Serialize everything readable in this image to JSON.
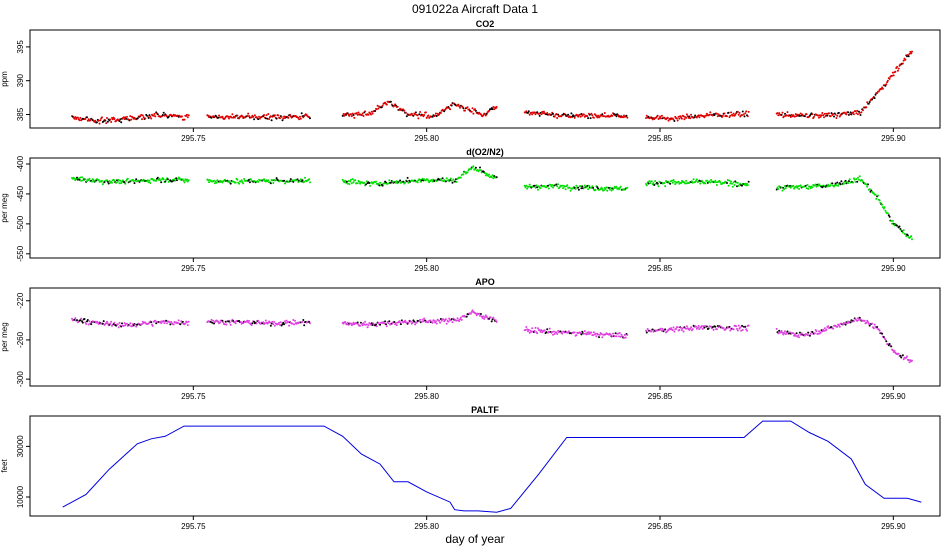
{
  "page_title": "091022a   Aircraft Data 1",
  "xlabel": "day of year",
  "chart_data": [
    {
      "type": "scatter",
      "title": "CO2",
      "ylabel": "ppm",
      "color": "#e00000",
      "xlim": [
        295.715,
        295.91
      ],
      "ylim": [
        383.0,
        397.5
      ],
      "xticks": [
        295.75,
        295.8,
        295.85,
        295.9
      ],
      "xtick_labels": [
        "295.75",
        "295.80",
        "295.85",
        "295.90"
      ],
      "yticks": [
        385,
        390,
        395
      ],
      "ytick_labels": [
        "385",
        "390",
        "395"
      ],
      "series": [
        {
          "x": [
            295.724,
            295.73,
            295.736,
            295.742,
            295.749
          ],
          "y": [
            384.6,
            384.0,
            384.4,
            384.9,
            384.6
          ]
        },
        {
          "x": [
            295.753,
            295.76,
            295.767,
            295.775
          ],
          "y": [
            384.7,
            384.6,
            384.6,
            384.7
          ]
        },
        {
          "x": [
            295.782,
            295.788,
            295.792,
            295.796,
            295.802,
            295.806,
            295.812,
            295.815
          ],
          "y": [
            384.9,
            385.2,
            386.9,
            385.0,
            384.8,
            386.6,
            384.9,
            386.1
          ]
        },
        {
          "x": [
            295.821,
            295.828,
            295.836,
            295.843
          ],
          "y": [
            385.4,
            384.9,
            384.8,
            384.8
          ]
        },
        {
          "x": [
            295.847,
            295.853,
            295.86,
            295.869
          ],
          "y": [
            384.6,
            384.4,
            384.9,
            385.1
          ]
        },
        {
          "x": [
            295.875,
            295.881,
            295.887,
            295.893,
            295.897,
            295.9,
            295.904
          ],
          "y": [
            385.0,
            384.8,
            384.9,
            385.3,
            388.5,
            391.0,
            394.5
          ]
        }
      ]
    },
    {
      "type": "scatter",
      "title": "d(O2/N2)",
      "ylabel": "per meg",
      "color": "#00e000",
      "xlim": [
        295.715,
        295.91
      ],
      "ylim": [
        -557,
        -390
      ],
      "xticks": [
        295.75,
        295.8,
        295.85,
        295.9
      ],
      "xtick_labels": [
        "295.75",
        "295.80",
        "295.85",
        "295.90"
      ],
      "yticks": [
        -400,
        -450,
        -500,
        -550
      ],
      "ytick_labels": [
        "-400",
        "-450",
        "-500",
        "-550"
      ],
      "series": [
        {
          "x": [
            295.724,
            295.73,
            295.736,
            295.742,
            295.749
          ],
          "y": [
            -425,
            -428,
            -430,
            -426,
            -427
          ]
        },
        {
          "x": [
            295.753,
            295.76,
            295.767,
            295.775
          ],
          "y": [
            -428,
            -429,
            -428,
            -428
          ]
        },
        {
          "x": [
            295.782,
            295.788,
            295.794,
            295.8,
            295.806,
            295.81,
            295.815
          ],
          "y": [
            -428,
            -433,
            -430,
            -426,
            -428,
            -405,
            -425
          ]
        },
        {
          "x": [
            295.821,
            295.828,
            295.836,
            295.843
          ],
          "y": [
            -438,
            -437,
            -440,
            -441
          ]
        },
        {
          "x": [
            295.847,
            295.853,
            295.86,
            295.869
          ],
          "y": [
            -432,
            -431,
            -430,
            -434
          ]
        },
        {
          "x": [
            295.875,
            295.881,
            295.887,
            295.893,
            295.897,
            295.9,
            295.904
          ],
          "y": [
            -440,
            -438,
            -435,
            -425,
            -460,
            -500,
            -525
          ]
        }
      ]
    },
    {
      "type": "scatter",
      "title": "APO",
      "ylabel": "per meg",
      "color": "#e040e0",
      "xlim": [
        295.715,
        295.91
      ],
      "ylim": [
        -307,
        -207
      ],
      "xticks": [
        295.75,
        295.8,
        295.85,
        295.9
      ],
      "xtick_labels": [
        "295.75",
        "295.80",
        "295.85",
        "295.90"
      ],
      "yticks": [
        -220,
        -260,
        -300
      ],
      "ytick_labels": [
        "-220",
        "-260",
        "-300"
      ],
      "series": [
        {
          "x": [
            295.724,
            295.73,
            295.736,
            295.742,
            295.749
          ],
          "y": [
            -239,
            -243,
            -245,
            -242,
            -242
          ]
        },
        {
          "x": [
            295.753,
            295.76,
            295.767,
            295.775
          ],
          "y": [
            -241,
            -242,
            -243,
            -242
          ]
        },
        {
          "x": [
            295.782,
            295.788,
            295.794,
            295.8,
            295.806,
            295.81,
            295.815
          ],
          "y": [
            -243,
            -244,
            -242,
            -241,
            -240,
            -232,
            -240
          ]
        },
        {
          "x": [
            295.821,
            295.828,
            295.836,
            295.843
          ],
          "y": [
            -250,
            -252,
            -254,
            -256
          ]
        },
        {
          "x": [
            295.847,
            295.853,
            295.86,
            295.869
          ],
          "y": [
            -251,
            -249,
            -247,
            -248
          ]
        },
        {
          "x": [
            295.875,
            295.881,
            295.887,
            295.893,
            295.897,
            295.9,
            295.904
          ],
          "y": [
            -252,
            -255,
            -247,
            -238,
            -250,
            -272,
            -282
          ]
        }
      ]
    },
    {
      "type": "line",
      "title": "PALTF",
      "ylabel": "feet",
      "color": "#0000e0",
      "xlim": [
        295.715,
        295.91
      ],
      "ylim": [
        2500,
        42000
      ],
      "xticks": [
        295.75,
        295.8,
        295.85,
        295.9
      ],
      "xtick_labels": [
        "295.75",
        "295.80",
        "295.85",
        "295.90"
      ],
      "yticks": [
        10000,
        30000
      ],
      "ytick_labels": [
        "10000",
        "30000"
      ],
      "series": [
        {
          "x": [
            295.722,
            295.724,
            295.727,
            295.729,
            295.732,
            295.735,
            295.738,
            295.741,
            295.744,
            295.748,
            295.75,
            295.76,
            295.77,
            295.778,
            295.782,
            295.786,
            295.79,
            295.793,
            295.796,
            295.8,
            295.805,
            295.806,
            295.808,
            295.811,
            295.815,
            295.818,
            295.824,
            295.83,
            295.85,
            295.865,
            295.868,
            295.872,
            295.878,
            295.882,
            295.886,
            295.891,
            295.894,
            295.898,
            295.903,
            295.906
          ],
          "y": [
            6000,
            8000,
            11000,
            15000,
            21000,
            26000,
            31000,
            33000,
            34000,
            38000,
            38000,
            38000,
            38000,
            38000,
            34000,
            27000,
            23000,
            16000,
            16000,
            12000,
            8000,
            5000,
            4500,
            4500,
            4000,
            5500,
            19000,
            33500,
            33500,
            33500,
            33500,
            40000,
            40000,
            35500,
            32000,
            25000,
            15000,
            9500,
            9500,
            8000
          ]
        }
      ]
    }
  ]
}
